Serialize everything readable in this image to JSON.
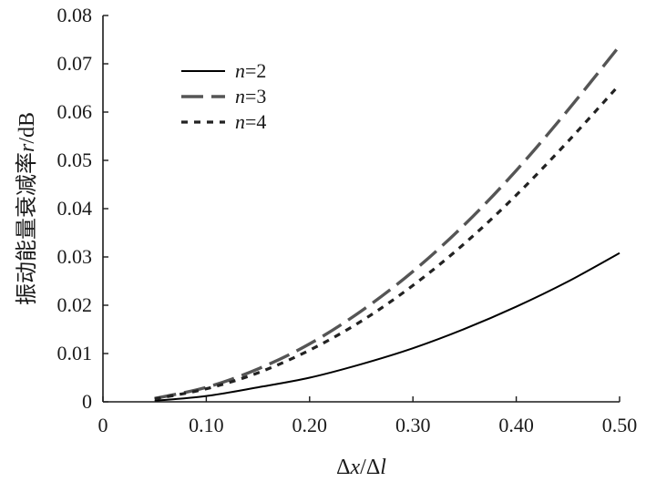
{
  "chart_data": {
    "type": "line",
    "xlabel_parts": [
      {
        "text": "Δ",
        "italic": false
      },
      {
        "text": "x",
        "italic": true
      },
      {
        "text": "/Δ",
        "italic": false
      },
      {
        "text": "l",
        "italic": true
      }
    ],
    "ylabel_parts": [
      {
        "text": "振动能量衰减率",
        "italic": false
      },
      {
        "text": "r",
        "italic": true
      },
      {
        "text": "/dB",
        "italic": false
      }
    ],
    "xlim": [
      0,
      0.5
    ],
    "ylim": [
      0,
      0.08
    ],
    "xticks": [
      {
        "value": 0,
        "label": "0"
      },
      {
        "value": 0.1,
        "label": "0.10"
      },
      {
        "value": 0.2,
        "label": "0.20"
      },
      {
        "value": 0.3,
        "label": "0.30"
      },
      {
        "value": 0.4,
        "label": "0.40"
      },
      {
        "value": 0.5,
        "label": "0.50"
      }
    ],
    "yticks": [
      {
        "value": 0,
        "label": "0"
      },
      {
        "value": 0.01,
        "label": "0.01"
      },
      {
        "value": 0.02,
        "label": "0.02"
      },
      {
        "value": 0.03,
        "label": "0.03"
      },
      {
        "value": 0.04,
        "label": "0.04"
      },
      {
        "value": 0.05,
        "label": "0.05"
      },
      {
        "value": 0.06,
        "label": "0.06"
      },
      {
        "value": 0.07,
        "label": "0.07"
      },
      {
        "value": 0.08,
        "label": "0.08"
      }
    ],
    "grid": false,
    "legend_position": "top-left",
    "series": [
      {
        "name_prefix": "n",
        "name_suffix": "=2",
        "color": "#000000",
        "dash": "solid",
        "x": [
          0.05,
          0.1,
          0.15,
          0.2,
          0.25,
          0.3,
          0.35,
          0.4,
          0.45,
          0.5
        ],
        "y": [
          0.0002,
          0.0012,
          0.003,
          0.005,
          0.0078,
          0.0111,
          0.0151,
          0.0197,
          0.0249,
          0.0308
        ]
      },
      {
        "name_prefix": "n",
        "name_suffix": "=3",
        "color": "#555555",
        "dash": "long-dash",
        "x": [
          0.05,
          0.1,
          0.15,
          0.2,
          0.25,
          0.3,
          0.35,
          0.4,
          0.45,
          0.5
        ],
        "y": [
          0.0007,
          0.003,
          0.0068,
          0.012,
          0.0188,
          0.027,
          0.0367,
          0.0479,
          0.0604,
          0.0737
        ]
      },
      {
        "name_prefix": "n",
        "name_suffix": "=4",
        "color": "#222222",
        "dash": "dotted",
        "x": [
          0.05,
          0.1,
          0.15,
          0.2,
          0.25,
          0.3,
          0.35,
          0.4,
          0.45,
          0.5
        ],
        "y": [
          0.0006,
          0.0027,
          0.006,
          0.0107,
          0.0167,
          0.0241,
          0.0328,
          0.0428,
          0.0539,
          0.0657
        ]
      }
    ]
  }
}
